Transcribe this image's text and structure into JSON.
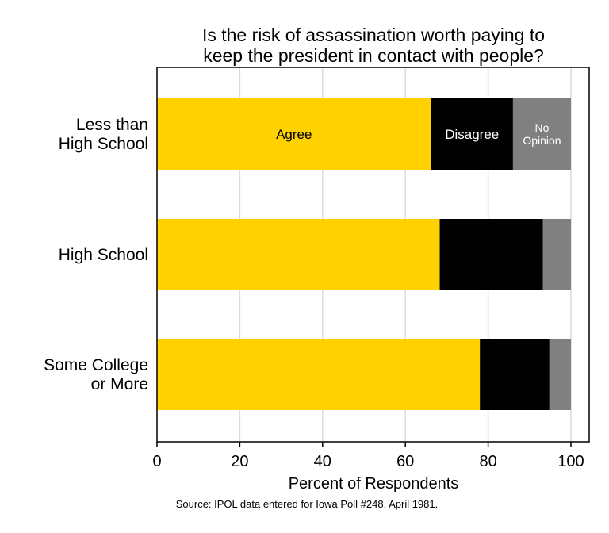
{
  "chart_data": {
    "type": "bar",
    "orientation": "horizontal",
    "stacked": true,
    "title_lines": [
      "Is the risk of assassination worth paying to",
      "keep the president in contact with people?"
    ],
    "categories": [
      [
        "Less than ",
        "High School"
      ],
      [
        "High School"
      ],
      [
        "Some College",
        "or More"
      ]
    ],
    "series": [
      {
        "name": "Agree",
        "values": [
          66.2,
          68.3,
          78.0
        ],
        "color": "#ffd100"
      },
      {
        "name": "Disagree",
        "values": [
          19.8,
          24.9,
          16.8
        ],
        "color": "#000000"
      },
      {
        "name": [
          "No",
          "Opinion"
        ],
        "values": [
          14.0,
          6.8,
          5.2
        ],
        "color": "#808080"
      }
    ],
    "xlabel": "Percent of Respondents",
    "xlim": [
      0,
      100
    ],
    "xticks": [
      "0",
      "20",
      "40",
      "60",
      "80",
      "100"
    ],
    "grid": true,
    "source_note": "Source: IPOL data entered for Iowa Poll #248, April 1981."
  }
}
